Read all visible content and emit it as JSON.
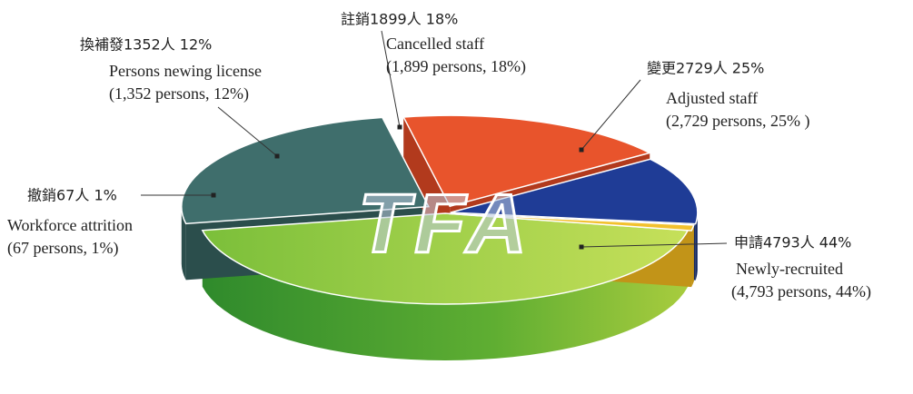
{
  "chart_data": {
    "type": "pie",
    "categories": [
      "Newly-recruited",
      "Adjusted staff",
      "Cancelled staff",
      "Persons newing license",
      "Workforce attrition"
    ],
    "labels_zh": [
      "申請4793人 44%",
      "變更2729人 25%",
      "註銷1899人 18%",
      "換補發1352人 12%",
      "撤銷67人 1%"
    ],
    "details": [
      "(4,793 persons, 44%)",
      "(2,729 persons, 25% )",
      "(1,899 persons, 18%)",
      "(1,352 persons, 12%)",
      "(67 persons, 1%)"
    ],
    "values": [
      44,
      25,
      18,
      12,
      1
    ],
    "colors": [
      "#9ccc3c",
      "#3f6e6c",
      "#e8542c",
      "#1f3c96",
      "#f2c12e"
    ],
    "watermark": "TFA"
  }
}
